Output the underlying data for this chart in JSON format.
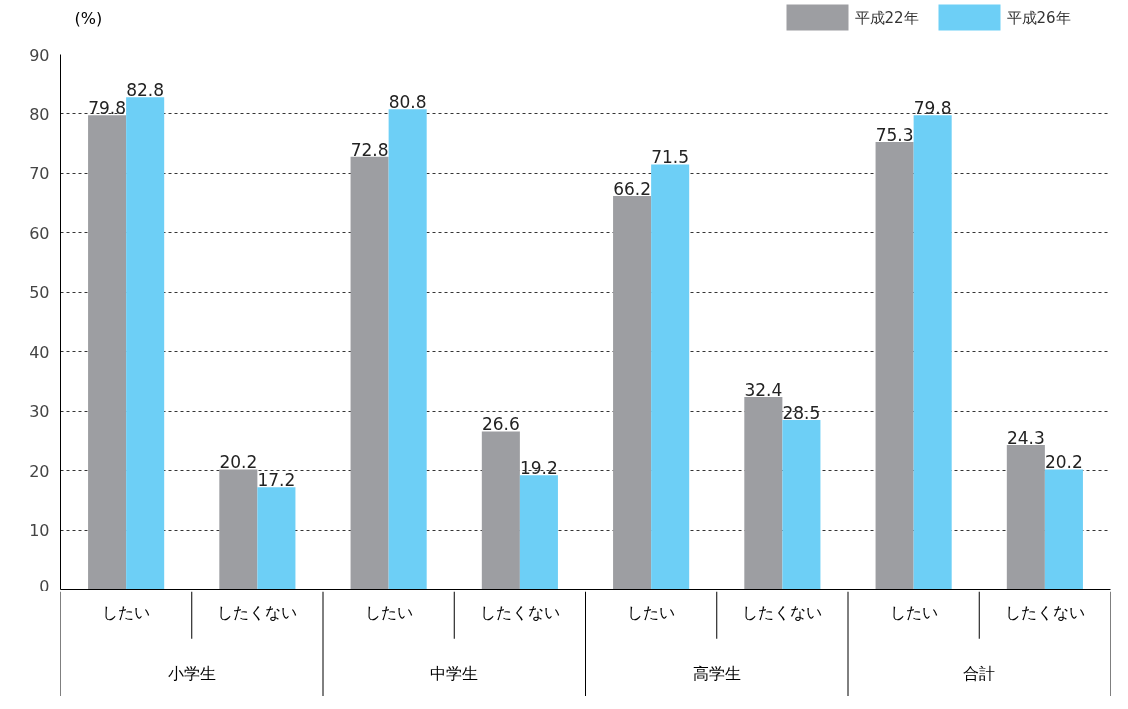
{
  "chart_data": {
    "type": "bar",
    "ylabel": "(%)",
    "categories": [
      "したい",
      "したくない",
      "したい",
      "したくない",
      "したい",
      "したくない",
      "したい",
      "したくない"
    ],
    "annotations": [
      "小学生",
      "中学生",
      "高学生",
      "合計"
    ],
    "series": [
      {
        "name": "平成22年",
        "color": "#9d9ea2",
        "values": [
          79.8,
          20.2,
          72.8,
          26.6,
          66.2,
          32.4,
          75.3,
          24.3
        ]
      },
      {
        "name": "平成26年",
        "color": "#6dcff6",
        "values": [
          82.8,
          17.2,
          80.8,
          19.2,
          71.5,
          28.5,
          79.8,
          20.2
        ]
      }
    ],
    "ylim": [
      0,
      90
    ],
    "yticks": [
      0,
      10,
      20,
      30,
      40,
      50,
      60,
      70,
      80,
      90
    ],
    "grid": "y",
    "legend": "top right",
    "data_labels": true
  }
}
